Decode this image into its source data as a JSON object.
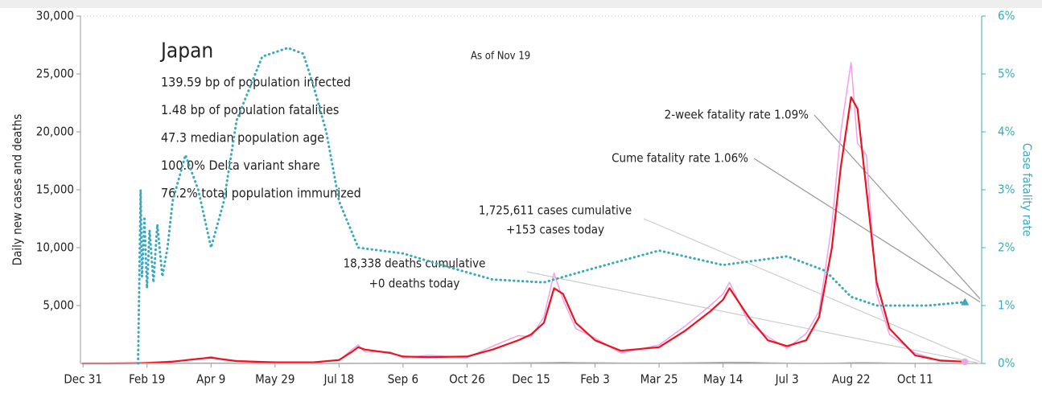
{
  "chart_data": {
    "type": "line",
    "info": {
      "title": "Japan",
      "lines": [
        "139.59 bp of population infected",
        "1.48 bp of population fatalities",
        "47.3 median population age",
        "100.0% Delta variant share",
        "76.2% total population immunized"
      ]
    },
    "note": "As of Nov 19",
    "ylabel": "Daily new cases and deaths",
    "y2label": "Case fatality rate",
    "annotations": [
      "2-week fatality rate 1.09%",
      "Cume fatality rate 1.06%",
      "1,725,611 cases cumulative",
      "+153 cases today",
      "18,338 deaths cumulative",
      "+0 deaths today"
    ],
    "xlim": [
      -2,
      702
    ],
    "xticks": [
      {
        "value": 0,
        "label": "Dec 31"
      },
      {
        "value": 50,
        "label": "Feb 19"
      },
      {
        "value": 100,
        "label": "Apr 9"
      },
      {
        "value": 150,
        "label": "May 29"
      },
      {
        "value": 200,
        "label": "Jul 18"
      },
      {
        "value": 250,
        "label": "Sep 6"
      },
      {
        "value": 300,
        "label": "Oct 26"
      },
      {
        "value": 350,
        "label": "Dec 15"
      },
      {
        "value": 400,
        "label": "Feb 3"
      },
      {
        "value": 450,
        "label": "Mar 25"
      },
      {
        "value": 500,
        "label": "May 14"
      },
      {
        "value": 550,
        "label": "Jul 3"
      },
      {
        "value": 600,
        "label": "Aug 22"
      },
      {
        "value": 650,
        "label": "Oct 11"
      }
    ],
    "ylim": [
      0,
      30000
    ],
    "yticks": [
      {
        "value": 5000,
        "label": "5,000"
      },
      {
        "value": 10000,
        "label": "10,000"
      },
      {
        "value": 15000,
        "label": "15,000"
      },
      {
        "value": 20000,
        "label": "20,000"
      },
      {
        "value": 25000,
        "label": "25,000"
      },
      {
        "value": 30000,
        "label": "30,000"
      }
    ],
    "y2lim": [
      0,
      6
    ],
    "y2ticks": [
      {
        "value": 0,
        "label": "0%"
      },
      {
        "value": 1,
        "label": "1%"
      },
      {
        "value": 2,
        "label": "2%"
      },
      {
        "value": 3,
        "label": "3%"
      },
      {
        "value": 4,
        "label": "4%"
      },
      {
        "value": 5,
        "label": "5%"
      },
      {
        "value": 6,
        "label": "6%"
      }
    ],
    "x": [
      0,
      20,
      40,
      50,
      70,
      90,
      100,
      110,
      120,
      150,
      180,
      200,
      210,
      215,
      220,
      240,
      250,
      270,
      300,
      320,
      340,
      350,
      360,
      368,
      375,
      385,
      400,
      420,
      450,
      470,
      490,
      500,
      505,
      520,
      535,
      550,
      565,
      575,
      585,
      592,
      600,
      605,
      612,
      620,
      630,
      650,
      670,
      689
    ],
    "series": [
      {
        "color": "#f0a0ec",
        "values": [
          0,
          0,
          30,
          60,
          200,
          350,
          600,
          300,
          250,
          80,
          120,
          250,
          1200,
          1600,
          1000,
          1000,
          500,
          700,
          500,
          1500,
          2400,
          2300,
          4000,
          7800,
          5500,
          3000,
          2200,
          900,
          1600,
          3200,
          5000,
          6000,
          7000,
          3500,
          2300,
          1300,
          2600,
          4500,
          12000,
          20000,
          26000,
          19000,
          18000,
          6000,
          2500,
          900,
          200,
          153
        ]
      },
      {
        "color": "#e8141e",
        "values": [
          0,
          0,
          20,
          50,
          150,
          400,
          500,
          350,
          200,
          100,
          100,
          300,
          1000,
          1400,
          1200,
          900,
          600,
          550,
          600,
          1200,
          2000,
          2500,
          3500,
          6500,
          6000,
          3500,
          2000,
          1100,
          1400,
          2800,
          4500,
          5500,
          6500,
          4000,
          2000,
          1500,
          2000,
          4000,
          10000,
          17000,
          23000,
          22000,
          15000,
          7000,
          3000,
          700,
          250,
          150
        ]
      },
      {
        "color": "#aaaaaa",
        "values": [
          0,
          0,
          0,
          1,
          10,
          20,
          30,
          15,
          5,
          2,
          1,
          2,
          5,
          8,
          10,
          12,
          10,
          8,
          10,
          20,
          40,
          50,
          60,
          70,
          80,
          60,
          50,
          30,
          20,
          40,
          70,
          90,
          100,
          80,
          40,
          20,
          10,
          10,
          15,
          30,
          50,
          60,
          60,
          50,
          30,
          10,
          5,
          0
        ]
      },
      {
        "color": "#3aa9c0",
        "axis": "y2",
        "x": [
          43,
          45,
          46,
          48,
          50,
          52,
          55,
          58,
          62,
          66,
          70,
          80,
          90,
          100,
          110,
          120,
          140,
          160,
          172,
          180,
          190,
          200,
          215,
          250,
          280,
          320,
          360,
          400,
          450,
          500,
          550,
          580,
          600,
          620,
          660,
          689
        ],
        "values": [
          0,
          3.0,
          1.5,
          2.5,
          1.3,
          2.3,
          1.4,
          2.4,
          1.5,
          2.0,
          2.8,
          3.6,
          3.0,
          2.0,
          2.8,
          4.2,
          5.3,
          5.45,
          5.35,
          4.8,
          4.0,
          2.8,
          2.0,
          1.9,
          1.7,
          1.45,
          1.4,
          1.65,
          1.95,
          1.7,
          1.85,
          1.6,
          1.15,
          1.0,
          1.0,
          1.06
        ]
      }
    ]
  }
}
